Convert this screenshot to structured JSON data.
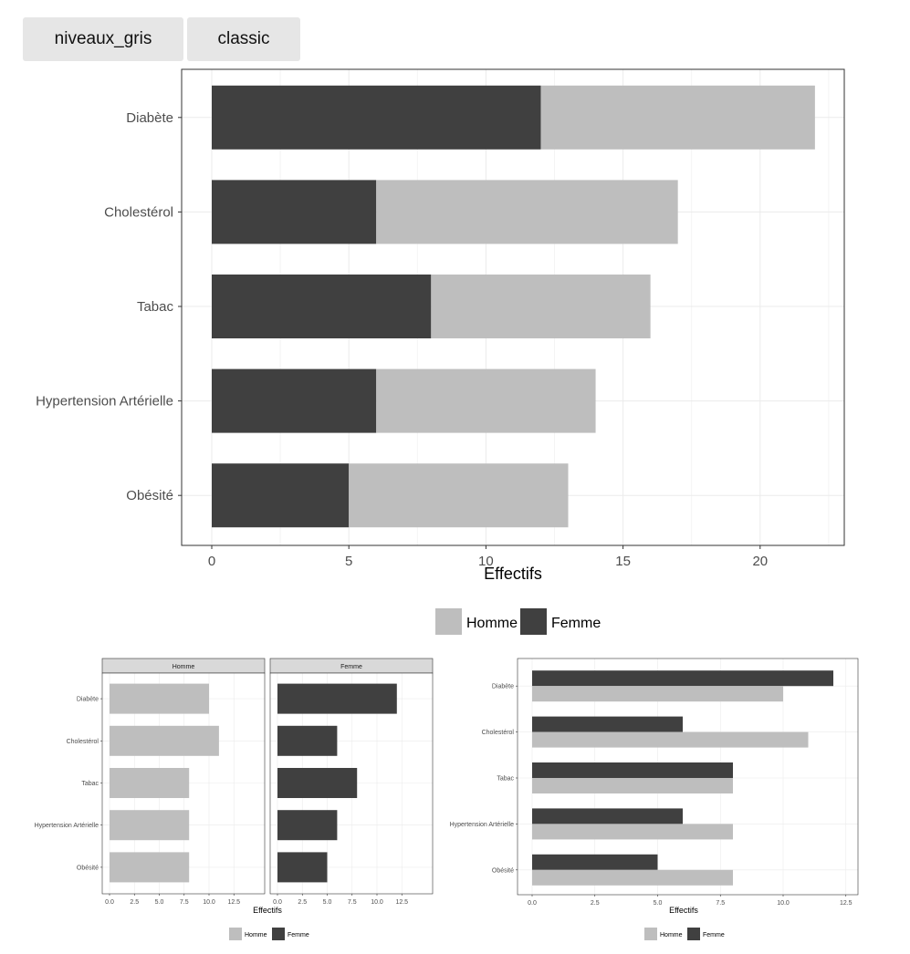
{
  "tabs": [
    {
      "label": "niveaux_gris"
    },
    {
      "label": "classic"
    }
  ],
  "colors": {
    "homme": "#bebebe",
    "femme": "#404040",
    "grid": "#ebebeb",
    "strip": "#d9d9d9"
  },
  "chart_data": [
    {
      "type": "bar",
      "orientation": "horizontal",
      "stacked": true,
      "categories": [
        "Diabète",
        "Cholestérol",
        "Tabac",
        "Hypertension Artérielle",
        "Obésité"
      ],
      "series": [
        {
          "name": "Femme",
          "values": [
            12,
            6,
            8,
            6,
            5
          ]
        },
        {
          "name": "Homme",
          "values": [
            10,
            11,
            8,
            8,
            8
          ]
        }
      ],
      "xlabel": "Effectifs",
      "xlim": [
        0,
        23
      ],
      "xticks": [
        "0",
        "5",
        "10",
        "15",
        "20"
      ],
      "legend": {
        "position": "bottom",
        "entries": [
          "Homme",
          "Femme"
        ]
      },
      "grid": true
    },
    {
      "type": "bar",
      "orientation": "horizontal",
      "faceted": true,
      "facets": [
        "Homme",
        "Femme"
      ],
      "categories": [
        "Diabète",
        "Cholestérol",
        "Tabac",
        "Hypertension Artérielle",
        "Obésité"
      ],
      "series": [
        {
          "name": "Homme",
          "values": [
            10,
            11,
            8,
            8,
            8
          ]
        },
        {
          "name": "Femme",
          "values": [
            12,
            6,
            8,
            6,
            5
          ]
        }
      ],
      "xlabel": "Effectifs",
      "xlim": [
        0,
        12.5
      ],
      "xticks": [
        "0.0",
        "2.5",
        "5.0",
        "7.5",
        "10.0",
        "12.5"
      ],
      "legend": {
        "position": "bottom",
        "entries": [
          "Homme",
          "Femme"
        ]
      },
      "grid": true
    },
    {
      "type": "bar",
      "orientation": "horizontal",
      "grouped": true,
      "categories": [
        "Diabète",
        "Cholestérol",
        "Tabac",
        "Hypertension Artérielle",
        "Obésité"
      ],
      "series": [
        {
          "name": "Femme",
          "values": [
            12,
            6,
            8,
            6,
            5
          ]
        },
        {
          "name": "Homme",
          "values": [
            10,
            11,
            8,
            8,
            8
          ]
        }
      ],
      "xlabel": "Effectifs",
      "xlim": [
        0,
        12.5
      ],
      "xticks": [
        "0.0",
        "2.5",
        "5.0",
        "7.5",
        "10.0",
        "12.5"
      ],
      "legend": {
        "position": "bottom",
        "entries": [
          "Homme",
          "Femme"
        ]
      },
      "grid": true
    }
  ]
}
